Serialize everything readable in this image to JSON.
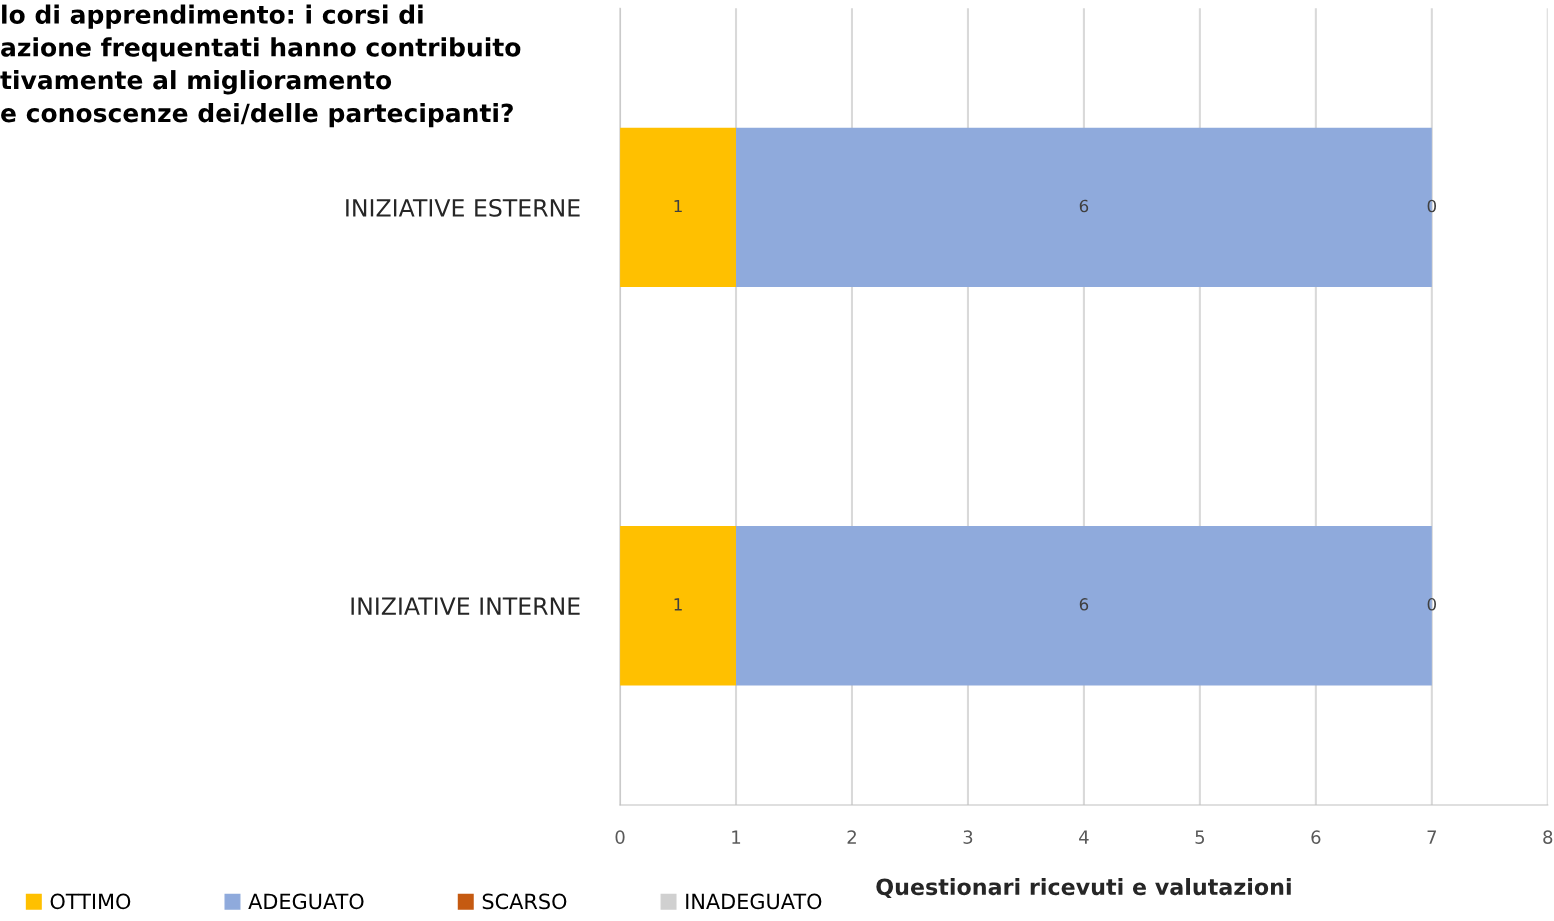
{
  "chart_data": {
    "type": "bar",
    "orientation": "horizontal",
    "stacked": true,
    "title": "lo di apprendimento: i corsi di\nazione frequentati hanno contribuito\ntivamente al miglioramento\ne conoscenze dei/delle partecipanti?",
    "xlabel": "Questionari ricevuti e valutazioni",
    "categories": [
      "INIZIATIVE ESTERNE",
      "INIZIATIVE INTERNE"
    ],
    "series": [
      {
        "name": "OTTIMO",
        "color": "#ffc000",
        "values": [
          1,
          1
        ],
        "value_labels": [
          "1",
          "1"
        ]
      },
      {
        "name": "ADEGUATO",
        "color": "#8faadc",
        "values": [
          6,
          6
        ],
        "value_labels": [
          "6",
          "6"
        ]
      },
      {
        "name": "SCARSO",
        "color": "#c55a11",
        "values": [
          0,
          0
        ],
        "value_labels": [
          "0",
          "0"
        ]
      },
      {
        "name": "INADEGUATO",
        "color": "#d0d0d0",
        "values": [
          0,
          0
        ],
        "value_labels": [
          null,
          null
        ]
      }
    ],
    "xlim": [
      0,
      8
    ],
    "xticks": [
      0,
      1,
      2,
      3,
      4,
      5,
      6,
      7,
      8
    ],
    "grid": "x",
    "legend": "bottom left"
  }
}
